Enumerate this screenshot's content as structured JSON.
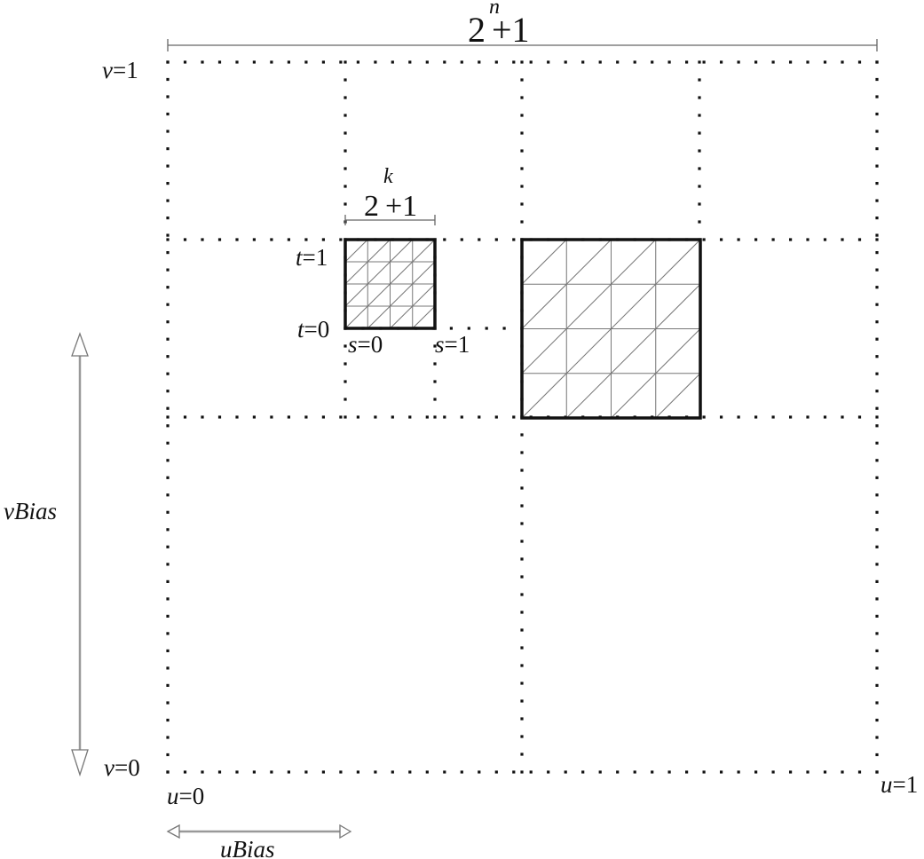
{
  "labels": {
    "top_dim_base": "2",
    "top_dim_exp": "n",
    "top_dim_tail": "+1",
    "small_dim_base": "2",
    "small_dim_exp": "k",
    "small_dim_tail": "+1",
    "v1_var": "v",
    "v1_val": "=1",
    "v0_var": "v",
    "v0_val": "=0",
    "u0_var": "u",
    "u0_val": "=0",
    "u1_var": "u",
    "u1_val": "=1",
    "t1_var": "t",
    "t1_val": "=1",
    "t0_var": "t",
    "t0_val": "=0",
    "s0_var": "s",
    "s0_val": "=0",
    "s1_var": "s",
    "s1_val": "=1",
    "vbias": "vBias",
    "ubias": "uBias"
  },
  "colors": {
    "ink": "#111111",
    "thin_line": "#777777",
    "arrow": "#999999"
  }
}
